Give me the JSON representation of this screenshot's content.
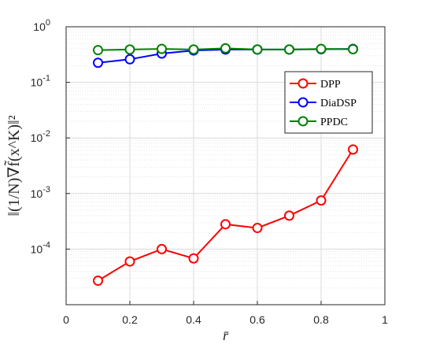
{
  "chart_data": {
    "type": "line",
    "xlabel": "r̄",
    "ylabel": "‖(1/N)∇f̃(x^K)‖²",
    "xlim": [
      0,
      1
    ],
    "ylim": [
      1e-05,
      1
    ],
    "yscale": "log",
    "grid": true,
    "legend_position": "top-right",
    "x_ticks": [
      "0",
      "0.2",
      "0.4",
      "0.6",
      "0.8",
      "1"
    ],
    "y_ticks": [
      {
        "base": "10",
        "exp": "0"
      },
      {
        "base": "10",
        "exp": "-1"
      },
      {
        "base": "10",
        "exp": "-2"
      },
      {
        "base": "10",
        "exp": "-3"
      },
      {
        "base": "10",
        "exp": "-4"
      }
    ],
    "x": [
      0.1,
      0.2,
      0.3,
      0.4,
      0.5,
      0.6,
      0.7,
      0.8,
      0.9
    ],
    "series": [
      {
        "name": "DPP",
        "color": "#ff0000",
        "values": [
          2.7e-05,
          6e-05,
          0.0001,
          6.8e-05,
          0.00028,
          0.00024,
          0.0004,
          0.00075,
          0.0062
        ]
      },
      {
        "name": "DiaDSP",
        "color": "#0000ff",
        "values": [
          0.225,
          0.26,
          0.33,
          0.375,
          0.39,
          0.39,
          0.39,
          0.395,
          0.4
        ]
      },
      {
        "name": "PPDC",
        "color": "#008000",
        "values": [
          0.38,
          0.39,
          0.4,
          0.39,
          0.41,
          0.39,
          0.39,
          0.4,
          0.395
        ]
      }
    ]
  }
}
